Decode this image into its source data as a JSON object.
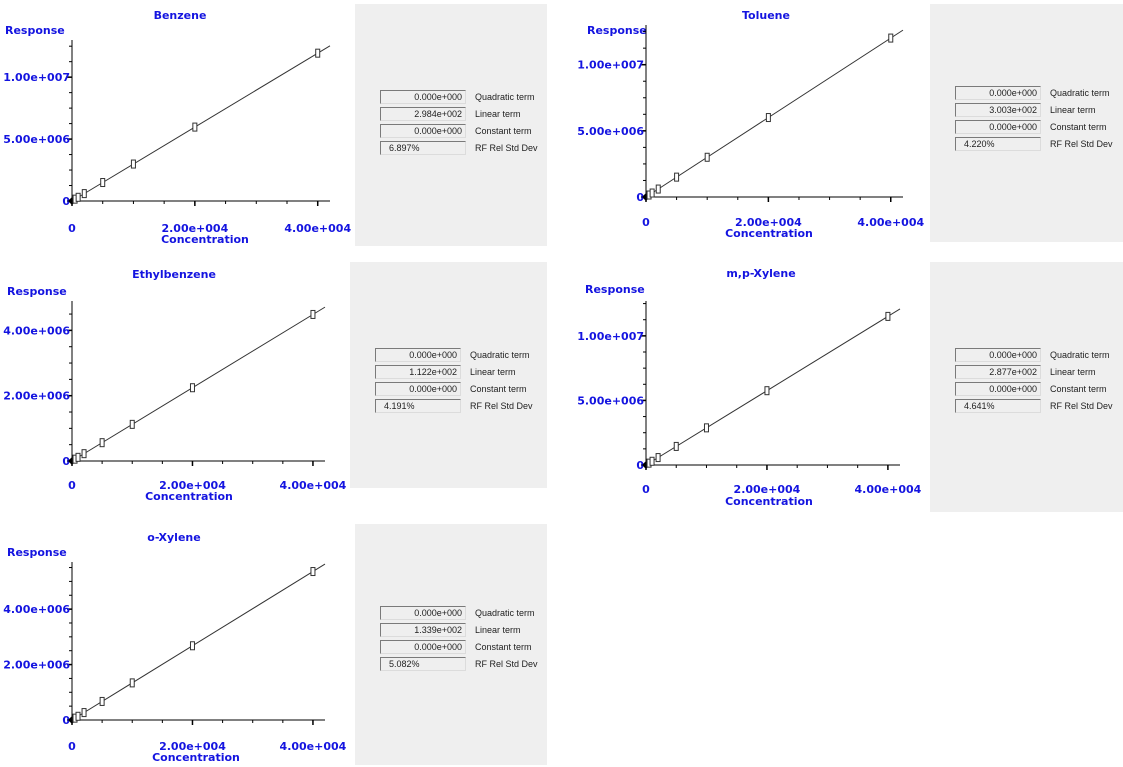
{
  "chart_data": [
    {
      "type": "scatter",
      "title": "Benzene",
      "xlabel": "Concentration",
      "ylabel": "Response",
      "xlim": [
        0,
        42000
      ],
      "ylim": [
        0,
        13000000
      ],
      "x_ticks": [
        0,
        20000,
        40000
      ],
      "x_tick_labels": [
        "0",
        "2.00e+004",
        "4.00e+004"
      ],
      "y_ticks": [
        0,
        5000000,
        10000000
      ],
      "y_tick_labels": [
        "0",
        "5.00e+006",
        "1.00e+007"
      ],
      "points": {
        "x": [
          0,
          500,
          1000,
          2000,
          5000,
          10000,
          20000,
          40000
        ],
        "y": [
          0,
          149200,
          298400,
          596800,
          1492000,
          2984000,
          5968000,
          11936000
        ]
      },
      "fit_line": {
        "x": [
          0,
          42000
        ],
        "y": [
          0,
          12532800
        ]
      },
      "stats": [
        {
          "value": "0.000e+000",
          "label": "Quadratic term"
        },
        {
          "value": "2.984e+002",
          "label": "Linear term"
        },
        {
          "value": "0.000e+000",
          "label": "Constant term"
        },
        {
          "value": "6.897%",
          "label": "RF Rel Std Dev"
        }
      ]
    },
    {
      "type": "scatter",
      "title": "Toluene",
      "xlabel": "Concentration",
      "ylabel": "Response",
      "xlim": [
        0,
        42000
      ],
      "ylim": [
        0,
        13000000
      ],
      "x_ticks": [
        0,
        20000,
        40000
      ],
      "x_tick_labels": [
        "0",
        "2.00e+004",
        "4.00e+004"
      ],
      "y_ticks": [
        0,
        5000000,
        10000000
      ],
      "y_tick_labels": [
        "0",
        "5.00e+006",
        "1.00e+007"
      ],
      "points": {
        "x": [
          0,
          500,
          1000,
          2000,
          5000,
          10000,
          20000,
          40000
        ],
        "y": [
          0,
          150150,
          300300,
          600600,
          1501500,
          3003000,
          6006000,
          12012000
        ]
      },
      "fit_line": {
        "x": [
          0,
          42000
        ],
        "y": [
          0,
          12612600
        ]
      },
      "stats": [
        {
          "value": "0.000e+000",
          "label": "Quadratic term"
        },
        {
          "value": "3.003e+002",
          "label": "Linear term"
        },
        {
          "value": "0.000e+000",
          "label": "Constant term"
        },
        {
          "value": "4.220%",
          "label": "RF Rel Std Dev"
        }
      ]
    },
    {
      "type": "scatter",
      "title": "Ethylbenzene",
      "xlabel": "Concentration",
      "ylabel": "Response",
      "xlim": [
        0,
        42000
      ],
      "ylim": [
        0,
        4900000
      ],
      "x_ticks": [
        0,
        20000,
        40000
      ],
      "x_tick_labels": [
        "0",
        "2.00e+004",
        "4.00e+004"
      ],
      "y_ticks": [
        0,
        2000000,
        4000000
      ],
      "y_tick_labels": [
        "0",
        "2.00e+006",
        "4.00e+006"
      ],
      "points": {
        "x": [
          0,
          500,
          1000,
          2000,
          5000,
          10000,
          20000,
          40000
        ],
        "y": [
          0,
          56100,
          112200,
          224400,
          561000,
          1122000,
          2244000,
          4488000
        ]
      },
      "fit_line": {
        "x": [
          0,
          42000
        ],
        "y": [
          0,
          4712400
        ]
      },
      "stats": [
        {
          "value": "0.000e+000",
          "label": "Quadratic term"
        },
        {
          "value": "1.122e+002",
          "label": "Linear term"
        },
        {
          "value": "0.000e+000",
          "label": "Constant term"
        },
        {
          "value": "4.191%",
          "label": "RF Rel Std Dev"
        }
      ]
    },
    {
      "type": "scatter",
      "title": "m,p-Xylene",
      "xlabel": "Concentration",
      "ylabel": "Response",
      "xlim": [
        0,
        42000
      ],
      "ylim": [
        0,
        12700000
      ],
      "x_ticks": [
        0,
        20000,
        40000
      ],
      "x_tick_labels": [
        "0",
        "2.00e+004",
        "4.00e+004"
      ],
      "y_ticks": [
        0,
        5000000,
        10000000
      ],
      "y_tick_labels": [
        "0",
        "5.00e+006",
        "1.00e+007"
      ],
      "points": {
        "x": [
          0,
          500,
          1000,
          2000,
          5000,
          10000,
          20000,
          40000
        ],
        "y": [
          0,
          143850,
          287700,
          575400,
          1438500,
          2877000,
          5754000,
          11508000
        ]
      },
      "fit_line": {
        "x": [
          0,
          42000
        ],
        "y": [
          0,
          12083400
        ]
      },
      "stats": [
        {
          "value": "0.000e+000",
          "label": "Quadratic term"
        },
        {
          "value": "2.877e+002",
          "label": "Linear term"
        },
        {
          "value": "0.000e+000",
          "label": "Constant term"
        },
        {
          "value": "4.641%",
          "label": "RF Rel Std Dev"
        }
      ]
    },
    {
      "type": "scatter",
      "title": "o-Xylene",
      "xlabel": "Concentration",
      "ylabel": "Response",
      "xlim": [
        0,
        42000
      ],
      "ylim": [
        0,
        5700000
      ],
      "x_ticks": [
        0,
        20000,
        40000
      ],
      "x_tick_labels": [
        "0",
        "2.00e+004",
        "4.00e+004"
      ],
      "y_ticks": [
        0,
        2000000,
        4000000
      ],
      "y_tick_labels": [
        "0",
        "2.00e+006",
        "4.00e+006"
      ],
      "points": {
        "x": [
          0,
          500,
          1000,
          2000,
          5000,
          10000,
          20000,
          40000
        ],
        "y": [
          0,
          66950,
          133900,
          267800,
          669500,
          1339000,
          2678000,
          5356000
        ]
      },
      "fit_line": {
        "x": [
          0,
          42000
        ],
        "y": [
          0,
          5623800
        ]
      },
      "stats": [
        {
          "value": "0.000e+000",
          "label": "Quadratic term"
        },
        {
          "value": "1.339e+002",
          "label": "Linear term"
        },
        {
          "value": "0.000e+000",
          "label": "Constant term"
        },
        {
          "value": "5.082%",
          "label": "RF Rel Std Dev"
        }
      ]
    }
  ],
  "colors": {
    "label_text": "#1414e0",
    "axis": "#000000",
    "fit_line": "#333333",
    "marker": "#333333",
    "panel_bg": "#efefef"
  }
}
